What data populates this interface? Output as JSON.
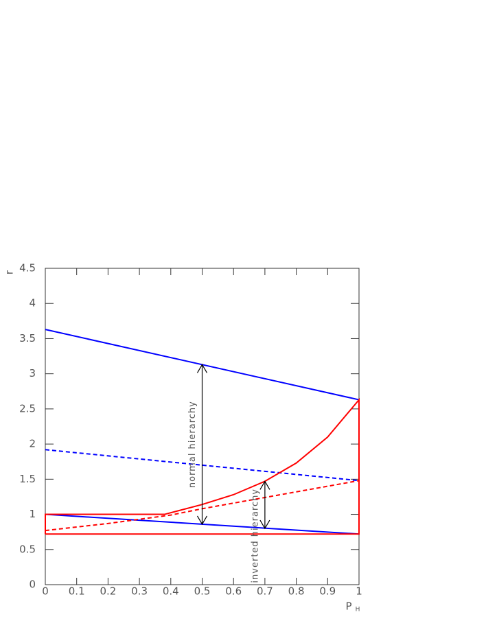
{
  "chart_data": {
    "type": "line",
    "ylabel": "r",
    "xlabel": {
      "text": "P",
      "subscript": "H"
    },
    "xlim": [
      0,
      1
    ],
    "ylim": [
      0,
      4.5
    ],
    "xticks": [
      0,
      0.1,
      0.2,
      0.3,
      0.4,
      0.5,
      0.6,
      0.7,
      0.8,
      0.9,
      1
    ],
    "yticks": [
      0,
      0.5,
      1,
      1.5,
      2,
      2.5,
      3,
      3.5,
      4,
      4.5
    ],
    "series": [
      {
        "color": "#0000ff",
        "dash": false,
        "x": [
          0,
          1
        ],
        "values": [
          3.63,
          2.63
        ]
      },
      {
        "color": "#0000ff",
        "dash": false,
        "x": [
          0,
          1
        ],
        "values": [
          1.0,
          0.72
        ]
      },
      {
        "color": "#0000ff",
        "dash": true,
        "x": [
          0,
          1
        ],
        "values": [
          1.92,
          1.48
        ]
      },
      {
        "color": "#ff0000",
        "dash": false,
        "x": [
          0,
          0,
          0.38,
          0.5,
          0.6,
          0.7,
          0.8,
          0.9,
          1,
          1,
          0
        ],
        "values": [
          0.72,
          1.0,
          1.0,
          1.14,
          1.28,
          1.47,
          1.73,
          2.1,
          2.63,
          0.72,
          0.72
        ]
      },
      {
        "color": "#ff0000",
        "dash": true,
        "x": [
          0,
          0.2,
          0.4,
          0.5,
          0.6,
          0.7,
          0.8,
          0.9,
          1
        ],
        "values": [
          0.77,
          0.87,
          0.99,
          1.08,
          1.16,
          1.24,
          1.32,
          1.4,
          1.48
        ]
      }
    ],
    "annotations": [
      {
        "text": "normal hierarchy",
        "x": 0.5,
        "y": [
          0.86,
          3.13
        ]
      },
      {
        "text": "inverted hierarchy",
        "x": 0.7,
        "y": [
          0.8,
          1.47
        ]
      }
    ]
  }
}
